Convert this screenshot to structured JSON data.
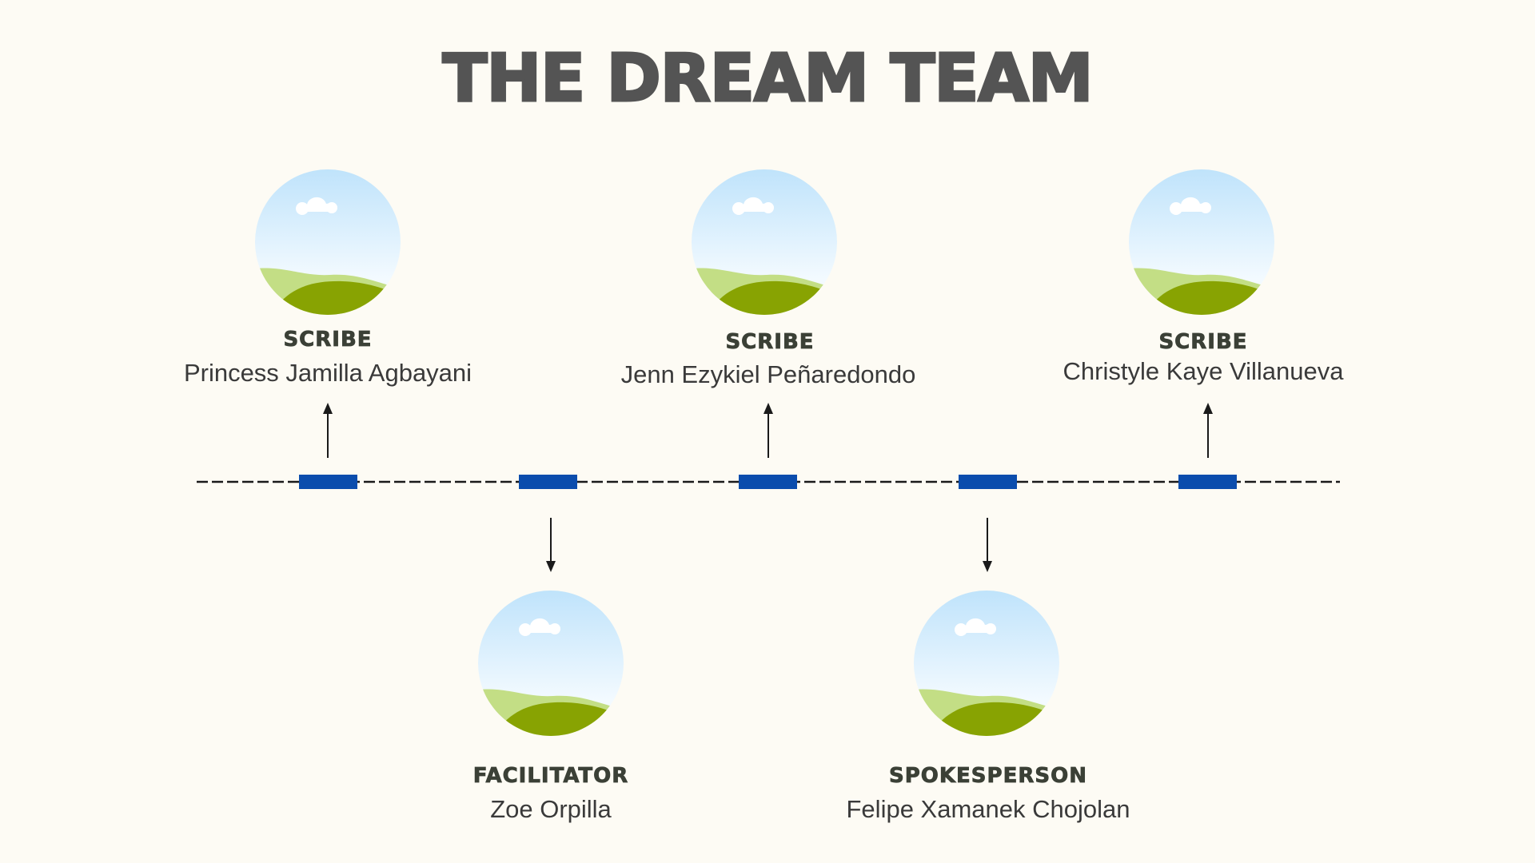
{
  "title": "THE DREAM TEAM",
  "colors": {
    "background": "#fdfbf4",
    "title": "#545454",
    "marker": "#0b4dad",
    "line": "#1a1a1a",
    "sky_top": "#bfe3fb",
    "grass_light": "#c3de85",
    "grass_dark": "#88a302"
  },
  "members": [
    {
      "role": "SCRIBE",
      "name": "Princess Jamilla Agbayani",
      "position": "top"
    },
    {
      "role": "FACILITATOR",
      "name": "Zoe Orpilla",
      "position": "bottom"
    },
    {
      "role": "SCRIBE",
      "name": "Jenn Ezykiel Peñaredondo",
      "position": "top"
    },
    {
      "role": "SPOKESPERSON",
      "name": "Felipe Xamanek Chojolan",
      "position": "bottom"
    },
    {
      "role": "SCRIBE",
      "name": "Christyle Kaye Villanueva",
      "position": "top"
    }
  ],
  "icons": {
    "avatar_placeholder": "landscape-image-icon",
    "up_arrow": "arrow-up-icon",
    "down_arrow": "arrow-down-icon"
  }
}
